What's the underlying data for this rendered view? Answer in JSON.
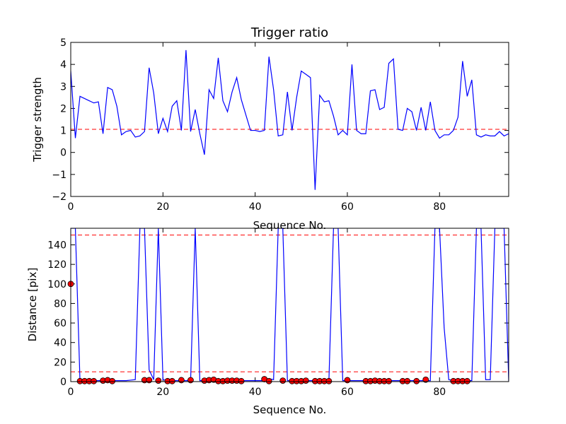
{
  "chart_data": [
    {
      "type": "line",
      "title": "Trigger ratio",
      "xlabel": "Sequence No.",
      "ylabel": "Trigger strength",
      "xlim": [
        0,
        95
      ],
      "ylim": [
        -2,
        5
      ],
      "xticks": [
        "0",
        "20",
        "40",
        "60",
        "80"
      ],
      "yticks": [
        "5",
        "4",
        "3",
        "2",
        "1",
        "0",
        "−1",
        "−2"
      ],
      "grid": false,
      "line_color": "#0000ff",
      "threshold_color": "#ff0000",
      "series": [
        {
          "values": [
            3.7,
            0.65,
            2.55,
            2.45,
            2.35,
            2.25,
            2.3,
            0.85,
            2.95,
            2.85,
            2.1,
            0.8,
            0.95,
            1.0,
            0.7,
            0.75,
            0.95,
            3.85,
            2.7,
            0.85,
            1.55,
            0.95,
            2.1,
            2.35,
            1.0,
            4.65,
            0.95,
            1.95,
            0.85,
            -0.1,
            2.85,
            2.45,
            4.3,
            2.35,
            1.85,
            2.75,
            3.4,
            2.4,
            1.7,
            1.0,
            1.0,
            0.95,
            1.0,
            4.35,
            2.85,
            0.75,
            0.8,
            2.75,
            1.0,
            2.5,
            3.7,
            3.55,
            3.4,
            -1.7,
            2.6,
            2.3,
            2.35,
            1.65,
            0.8,
            1.0,
            0.8,
            4.0,
            1.0,
            0.85,
            0.85,
            2.8,
            2.85,
            1.95,
            2.05,
            4.05,
            4.25,
            1.05,
            1.0,
            2.0,
            1.85,
            1.0,
            2.05,
            1.0,
            2.3,
            1.0,
            0.65,
            0.8,
            0.8,
            1.0,
            1.6,
            4.15,
            2.55,
            3.3,
            0.8,
            0.7,
            0.8,
            0.75,
            0.75,
            0.95,
            0.75,
            0.85,
            0.8
          ]
        }
      ],
      "threshold": 1.05
    },
    {
      "type": "line",
      "title": "",
      "xlabel": "Sequence No.",
      "ylabel": "Distance [pix]",
      "xlim": [
        0,
        95
      ],
      "ylim": [
        0,
        157
      ],
      "xticks": [
        "0",
        "20",
        "40",
        "60",
        "80"
      ],
      "yticks": [
        "140",
        "120",
        "100",
        "80",
        "60",
        "40",
        "20",
        "0"
      ],
      "grid": false,
      "line_color": "#0000ff",
      "marker_color": "#ff0000",
      "threshold_color": "#ff0000",
      "thresholds": [
        150,
        10
      ],
      "series": [
        {
          "values": [
            157,
            157,
            1,
            1,
            1,
            1,
            1,
            1,
            1,
            1,
            1,
            1,
            1,
            1.5,
            2,
            157,
            157,
            12,
            2,
            157,
            2,
            1,
            1,
            1,
            1,
            1,
            1,
            157,
            1,
            1,
            1,
            1,
            1,
            1,
            1,
            1,
            1,
            1,
            1,
            1,
            1,
            1,
            1,
            3,
            2,
            157,
            157,
            1,
            1,
            1,
            1,
            1,
            1,
            1,
            1,
            1,
            1,
            157,
            157,
            1,
            1,
            1,
            1,
            1,
            1,
            1,
            1,
            1,
            1,
            1,
            1,
            1,
            1,
            1,
            1,
            1,
            1,
            1,
            1,
            157,
            157,
            55,
            2,
            1,
            1,
            1,
            1,
            1,
            157,
            157,
            2,
            2,
            157,
            157,
            157,
            1,
            1
          ]
        }
      ],
      "markers": {
        "x": [
          0,
          2,
          3,
          4,
          5,
          7,
          8,
          9,
          16,
          17,
          19,
          21,
          22,
          24,
          26,
          29,
          30,
          31,
          32,
          33,
          34,
          35,
          36,
          37,
          42,
          43,
          46,
          48,
          49,
          50,
          51,
          53,
          54,
          55,
          56,
          60,
          64,
          65,
          66,
          67,
          68,
          69,
          72,
          73,
          75,
          77,
          83,
          84,
          85,
          86
        ],
        "y": [
          100,
          0.5,
          0.5,
          0.5,
          0.5,
          1,
          1.5,
          0.5,
          1.5,
          1.5,
          1,
          0.5,
          0.5,
          1.5,
          1.5,
          1,
          1.5,
          2,
          0.5,
          0.5,
          1,
          1,
          1,
          0.5,
          2.5,
          0.5,
          1,
          0.5,
          0.5,
          0.5,
          1,
          0.5,
          0.5,
          0.5,
          0.5,
          1.5,
          0.5,
          0.5,
          1,
          0.5,
          0.5,
          0.5,
          0.5,
          0.5,
          0.5,
          2,
          0.5,
          0.5,
          0.5,
          0.5
        ]
      }
    }
  ]
}
